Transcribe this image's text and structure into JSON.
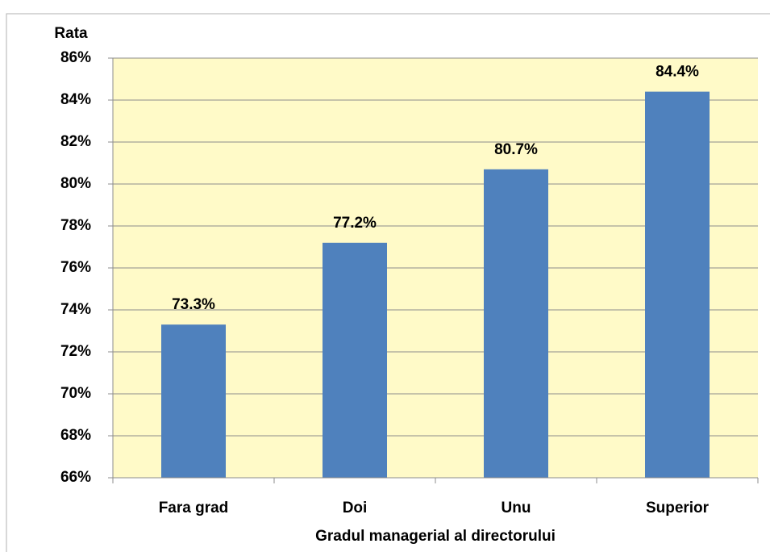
{
  "chart_data": {
    "type": "bar",
    "y_axis_title": "Rata",
    "x_axis_title": "Gradul managerial al directorului",
    "categories": [
      "Fara grad",
      "Doi",
      "Unu",
      "Superior"
    ],
    "values": [
      73.3,
      77.2,
      80.7,
      84.4
    ],
    "value_labels": [
      "73.3%",
      "77.2%",
      "80.7%",
      "84.4%"
    ],
    "color": "#4f81bd",
    "plot_background": "#fffac8",
    "ylim": [
      66,
      86
    ],
    "yticks": [
      {
        "value": 66,
        "label": "66%"
      },
      {
        "value": 68,
        "label": "68%"
      },
      {
        "value": 70,
        "label": "70%"
      },
      {
        "value": 72,
        "label": "72%"
      },
      {
        "value": 74,
        "label": "74%"
      },
      {
        "value": 76,
        "label": "76%"
      },
      {
        "value": 78,
        "label": "78%"
      },
      {
        "value": 80,
        "label": "80%"
      },
      {
        "value": 82,
        "label": "82%"
      },
      {
        "value": 84,
        "label": "84%"
      },
      {
        "value": 86,
        "label": "86%"
      }
    ],
    "grid": true
  }
}
